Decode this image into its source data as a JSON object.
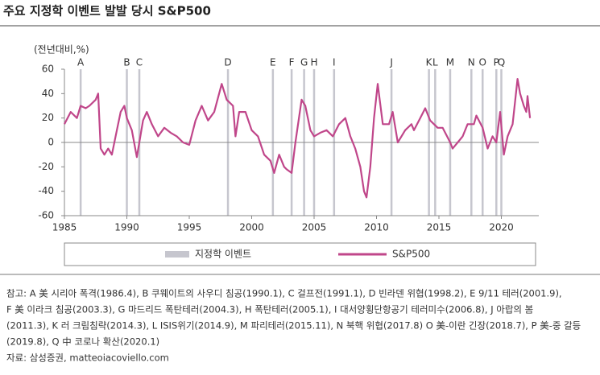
{
  "chart_data": {
    "type": "line",
    "title": "주요 지정학 이벤트 발발 당시 S&P500",
    "y_label": "(전년대비,%)",
    "xlim": [
      1985,
      2023
    ],
    "xticks": [
      1985,
      1990,
      1995,
      2000,
      2005,
      2010,
      2015,
      2020
    ],
    "ylim": [
      -60,
      60
    ],
    "yticks": [
      -60,
      -40,
      -20,
      0,
      20,
      40,
      60
    ],
    "events": {
      "name": "지정학 이벤트",
      "color": "#c6c6ce",
      "labels": [
        "A",
        "B",
        "C",
        "D",
        "E",
        "F",
        "G",
        "H",
        "I",
        "J",
        "K",
        "L",
        "M",
        "N",
        "O",
        "P",
        "Q"
      ],
      "x": [
        1986.3,
        1990.0,
        1991.0,
        1998.1,
        2001.7,
        2003.2,
        2004.2,
        2005.0,
        2006.6,
        2011.2,
        2014.2,
        2014.7,
        2015.9,
        2017.6,
        2018.5,
        2019.6,
        2020.0
      ]
    },
    "series": [
      {
        "name": "S&P500",
        "color": "#c0468a",
        "x": [
          1985.0,
          1985.5,
          1986.0,
          1986.3,
          1986.7,
          1987.0,
          1987.5,
          1987.7,
          1987.9,
          1988.2,
          1988.5,
          1988.8,
          1989.2,
          1989.5,
          1989.8,
          1990.0,
          1990.4,
          1990.8,
          1991.0,
          1991.3,
          1991.6,
          1992.0,
          1992.5,
          1993.0,
          1993.5,
          1994.0,
          1994.5,
          1995.0,
          1995.5,
          1996.0,
          1996.5,
          1997.0,
          1997.6,
          1998.0,
          1998.5,
          1998.7,
          1999.0,
          1999.5,
          2000.0,
          2000.5,
          2001.0,
          2001.5,
          2001.8,
          2002.2,
          2002.6,
          2002.8,
          2003.2,
          2003.5,
          2004.0,
          2004.3,
          2004.7,
          2005.0,
          2005.5,
          2006.0,
          2006.5,
          2007.0,
          2007.5,
          2007.9,
          2008.3,
          2008.7,
          2009.0,
          2009.2,
          2009.5,
          2009.8,
          2010.1,
          2010.5,
          2011.0,
          2011.3,
          2011.7,
          2012.0,
          2012.3,
          2012.8,
          2013.0,
          2013.5,
          2013.9,
          2014.3,
          2014.9,
          2015.3,
          2015.9,
          2016.1,
          2016.5,
          2016.9,
          2017.3,
          2017.8,
          2018.0,
          2018.5,
          2018.9,
          2019.3,
          2019.6,
          2019.9,
          2020.2,
          2020.5,
          2020.9,
          2021.3,
          2021.5,
          2021.8,
          2022.0,
          2022.1,
          2022.3
        ],
        "values": [
          15,
          25,
          20,
          30,
          28,
          30,
          35,
          40,
          -5,
          -10,
          -5,
          -10,
          10,
          25,
          30,
          20,
          10,
          -12,
          0,
          18,
          25,
          15,
          5,
          12,
          8,
          5,
          0,
          -2,
          18,
          30,
          18,
          25,
          48,
          35,
          30,
          5,
          25,
          25,
          10,
          5,
          -10,
          -15,
          -25,
          -10,
          -20,
          -22,
          -25,
          0,
          35,
          30,
          10,
          5,
          8,
          10,
          5,
          15,
          20,
          5,
          -5,
          -20,
          -40,
          -45,
          -20,
          20,
          48,
          15,
          15,
          25,
          0,
          5,
          10,
          15,
          10,
          20,
          28,
          18,
          12,
          12,
          0,
          -5,
          0,
          5,
          15,
          15,
          22,
          12,
          -5,
          5,
          0,
          25,
          -10,
          5,
          15,
          52,
          40,
          30,
          25,
          38,
          20
        ]
      }
    ],
    "notes": [
      "참고: A 美 시리아 폭격(1986.4), B 쿠웨이트의 사우디 침공(1990.1), C 걸프전(1991.1), D 빈라덴 위협(1998.2), E 9/11 테러(2001.9),",
      "F 美 이라크 침공(2003.3), G 마드리드 폭탄테러(2004.3), H 폭탄테러(2005.1), I 대서양횡단항공기 테러미수(2006.8), J 아랍의 봄",
      "(2011.3), K 러 크림침략(2014.3), L ISIS위기(2014.9), M 파리테러(2015.11), N 북핵 위협(2017.8) O 美-이란 긴장(2018.7), P 美-중 갈등",
      "(2019.8), Q 中 코로나 확산(2020.1)"
    ],
    "source": "자료: 삼성증권, matteoiacoviello.com"
  }
}
